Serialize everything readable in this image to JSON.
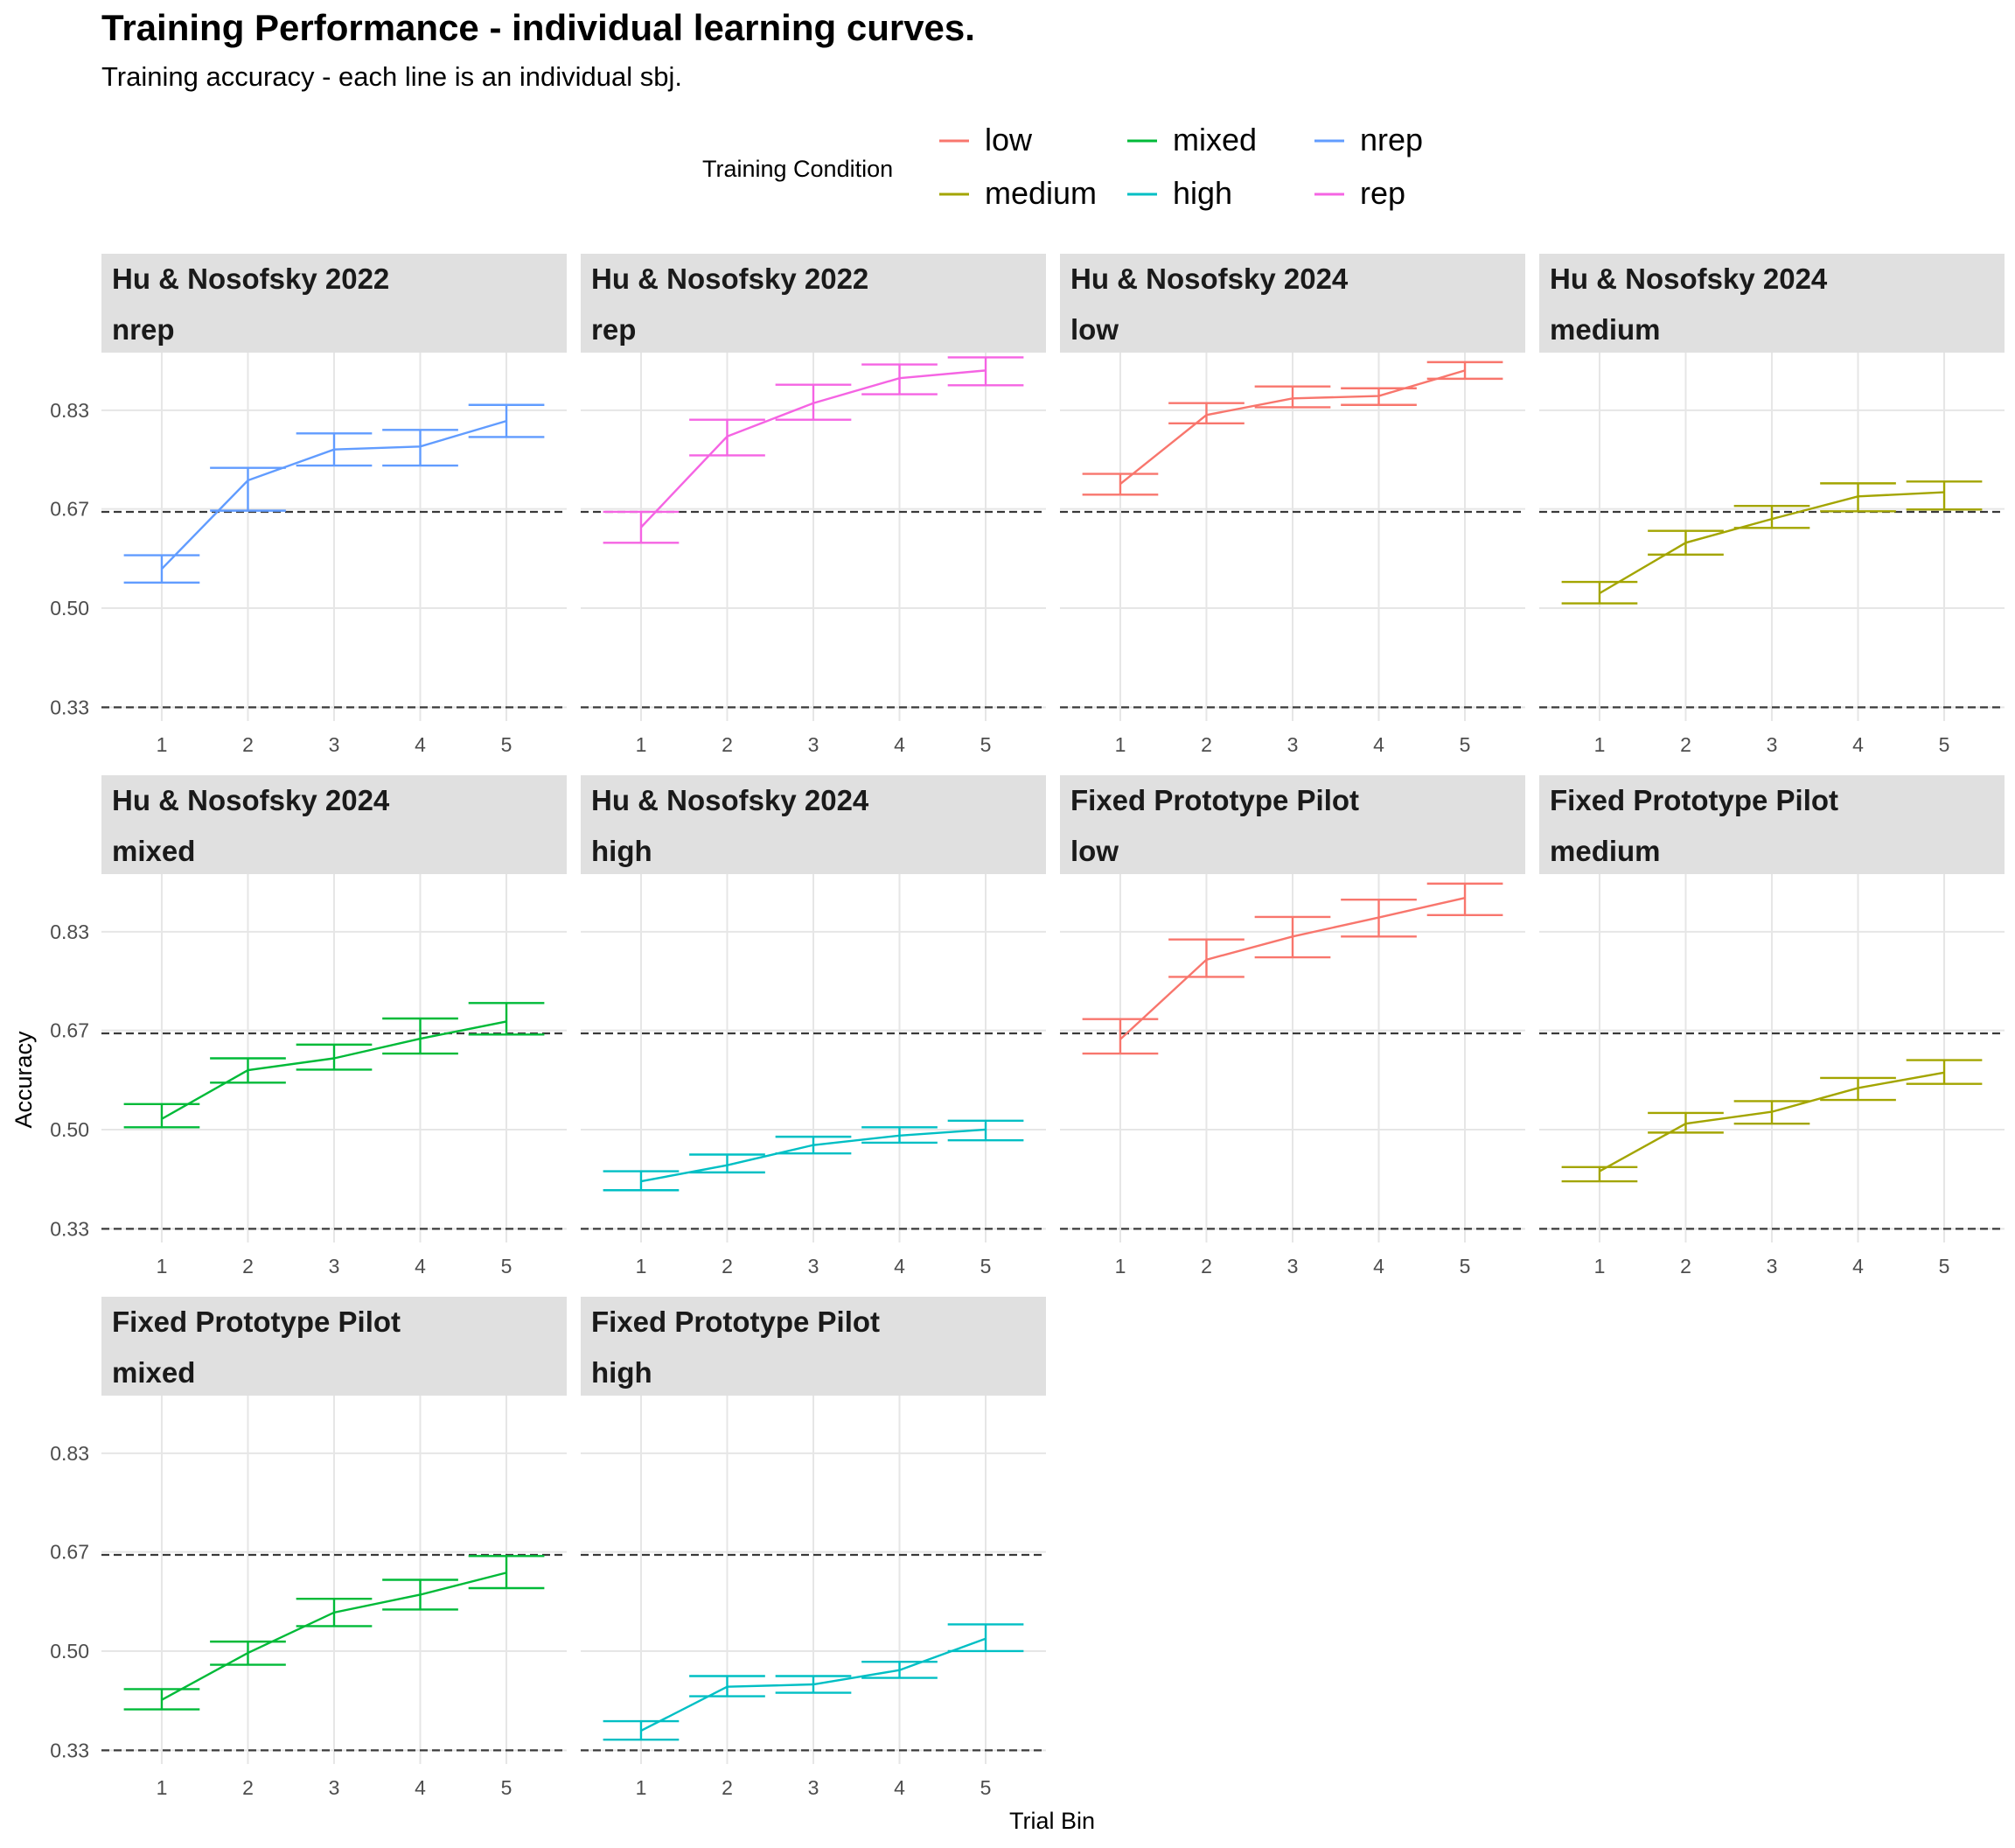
{
  "chart_data": {
    "type": "line",
    "title": "Training Performance - individual learning curves.",
    "subtitle": "Training accuracy - each line is an individual sbj.",
    "xlabel": "Trial Bin",
    "ylabel": "Accuracy",
    "x": [
      1,
      2,
      3,
      4,
      5
    ],
    "y_ticks": [
      "0.33",
      "0.50",
      "0.67",
      "0.83"
    ],
    "y_tick_values": [
      0.333,
      0.5,
      0.667,
      0.833
    ],
    "ylim": [
      0.31,
      0.93
    ],
    "reference_lines": [
      0.333,
      0.662
    ],
    "grid": true,
    "legend": {
      "title": "Training Condition",
      "position": "top",
      "entries": [
        {
          "name": "low",
          "color": "#F8766D"
        },
        {
          "name": "medium",
          "color": "#A3A500"
        },
        {
          "name": "mixed",
          "color": "#00BA38"
        },
        {
          "name": "high",
          "color": "#00BFC4"
        },
        {
          "name": "nrep",
          "color": "#619CFF"
        },
        {
          "name": "rep",
          "color": "#F564E3"
        }
      ]
    },
    "panels": [
      {
        "study": "Hu & Nosofsky 2022",
        "condition": "nrep",
        "color": "#619CFF",
        "y": [
          0.566,
          0.715,
          0.767,
          0.772,
          0.815
        ],
        "lower": [
          0.543,
          0.664,
          0.74,
          0.74,
          0.788
        ],
        "upper": [
          0.589,
          0.736,
          0.794,
          0.8,
          0.842
        ]
      },
      {
        "study": "Hu & Nosofsky 2022",
        "condition": "rep",
        "color": "#F564E3",
        "y": [
          0.636,
          0.789,
          0.845,
          0.887,
          0.9
        ],
        "lower": [
          0.61,
          0.757,
          0.817,
          0.86,
          0.875
        ],
        "upper": [
          0.662,
          0.817,
          0.876,
          0.91,
          0.922
        ]
      },
      {
        "study": "Hu & Nosofsky 2024",
        "condition": "low",
        "color": "#F8766D",
        "y": [
          0.709,
          0.825,
          0.853,
          0.857,
          0.9
        ],
        "lower": [
          0.691,
          0.811,
          0.838,
          0.842,
          0.886
        ],
        "upper": [
          0.726,
          0.845,
          0.873,
          0.87,
          0.914
        ]
      },
      {
        "study": "Hu & Nosofsky 2024",
        "condition": "medium",
        "color": "#A3A500",
        "y": [
          0.525,
          0.61,
          0.65,
          0.688,
          0.695
        ],
        "lower": [
          0.508,
          0.59,
          0.635,
          0.663,
          0.666
        ],
        "upper": [
          0.544,
          0.63,
          0.672,
          0.71,
          0.713
        ]
      },
      {
        "study": "Hu & Nosofsky 2024",
        "condition": "mixed",
        "color": "#00BA38",
        "y": [
          0.518,
          0.6,
          0.62,
          0.653,
          0.682
        ],
        "lower": [
          0.504,
          0.579,
          0.601,
          0.628,
          0.66
        ],
        "upper": [
          0.543,
          0.62,
          0.643,
          0.687,
          0.713
        ]
      },
      {
        "study": "Hu & Nosofsky 2024",
        "condition": "high",
        "color": "#00BFC4",
        "y": [
          0.413,
          0.44,
          0.474,
          0.49,
          0.5
        ],
        "lower": [
          0.398,
          0.428,
          0.46,
          0.478,
          0.482
        ],
        "upper": [
          0.43,
          0.458,
          0.488,
          0.504,
          0.515
        ]
      },
      {
        "study": "Fixed Prototype Pilot",
        "condition": "low",
        "color": "#F8766D",
        "y": [
          0.652,
          0.786,
          0.825,
          0.857,
          0.89
        ],
        "lower": [
          0.628,
          0.757,
          0.79,
          0.825,
          0.861
        ],
        "upper": [
          0.686,
          0.82,
          0.858,
          0.887,
          0.914
        ]
      },
      {
        "study": "Fixed Prototype Pilot",
        "condition": "medium",
        "color": "#A3A500",
        "y": [
          0.43,
          0.51,
          0.53,
          0.57,
          0.596
        ],
        "lower": [
          0.413,
          0.495,
          0.51,
          0.55,
          0.577
        ],
        "upper": [
          0.437,
          0.528,
          0.548,
          0.587,
          0.617
        ]
      },
      {
        "study": "Fixed Prototype Pilot",
        "condition": "mixed",
        "color": "#00BA38",
        "y": [
          0.418,
          0.497,
          0.565,
          0.595,
          0.632
        ],
        "lower": [
          0.402,
          0.477,
          0.542,
          0.57,
          0.606
        ],
        "upper": [
          0.436,
          0.516,
          0.588,
          0.62,
          0.66
        ]
      },
      {
        "study": "Fixed Prototype Pilot",
        "condition": "high",
        "color": "#00BFC4",
        "y": [
          0.366,
          0.44,
          0.444,
          0.468,
          0.521
        ],
        "lower": [
          0.351,
          0.424,
          0.43,
          0.455,
          0.5
        ],
        "upper": [
          0.382,
          0.458,
          0.458,
          0.482,
          0.545
        ]
      }
    ]
  }
}
